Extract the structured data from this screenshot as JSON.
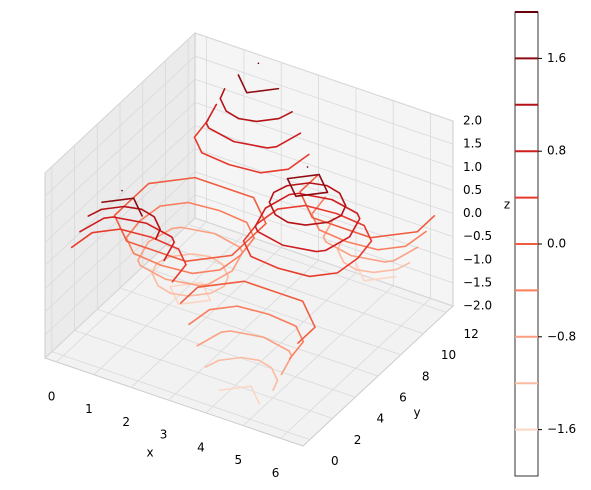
{
  "chart_data": {
    "type": "contour3d",
    "x_label": "x",
    "y_label": "y",
    "z_label": "z",
    "x": [
      0,
      0.785,
      1.571,
      2.356,
      3.142,
      3.927,
      4.712,
      5.498,
      6.283
    ],
    "y": [
      0,
      1.5,
      3,
      4.5,
      6,
      7.5,
      9,
      10.5,
      12
    ],
    "z": [
      [
        0,
        1.414,
        2,
        1.414,
        0,
        -1.414,
        -2,
        -1.414,
        0
      ],
      [
        0,
        1,
        1.414,
        1,
        0,
        -1,
        -1.414,
        -1,
        0
      ],
      [
        0,
        0,
        0,
        0,
        0,
        0,
        0,
        0,
        0
      ],
      [
        0,
        -1,
        -1.414,
        -1,
        0,
        1,
        1.414,
        1,
        0
      ],
      [
        0,
        -1.414,
        -2,
        -1.414,
        0,
        1.414,
        2,
        1.414,
        0
      ],
      [
        0,
        -1,
        -1.414,
        -1,
        0,
        1,
        1.414,
        1,
        0
      ],
      [
        0,
        0,
        0,
        0,
        0,
        0,
        0,
        0,
        0
      ],
      [
        0,
        1,
        1.414,
        1,
        0,
        -1,
        -1.414,
        -1,
        0
      ],
      [
        0,
        1.414,
        2,
        1.414,
        0,
        -1.414,
        -2,
        -1.414,
        0
      ]
    ],
    "levels": [
      -1.6,
      -1.2,
      -0.8,
      -0.4,
      0,
      0.4,
      0.8,
      1.2,
      1.6,
      2.0
    ],
    "level_colors": [
      "#fdd5c4",
      "#fcbba1",
      "#fc9f81",
      "#fb7d5d",
      "#f05c3f",
      "#e83a2c",
      "#d01d1f",
      "#b51217",
      "#8e0c12",
      "#67000d"
    ],
    "xlim": [
      -0.31,
      6.6
    ],
    "ylim": [
      -0.6,
      12.6
    ],
    "zlim": [
      -2,
      2
    ],
    "xticks": [
      0,
      1,
      2,
      3,
      4,
      5,
      6
    ],
    "yticks": [
      0,
      2,
      4,
      6,
      8,
      10,
      12
    ],
    "zticks": [
      {
        "value": 2,
        "label": "2.0"
      },
      {
        "value": 1.5,
        "label": "1.5"
      },
      {
        "value": 1,
        "label": "1.0"
      },
      {
        "value": 0.5,
        "label": "0.5"
      },
      {
        "value": 0,
        "label": "0.0"
      },
      {
        "value": -0.5,
        "label": "−0.5"
      },
      {
        "value": -1,
        "label": "−1.0"
      },
      {
        "value": -1.5,
        "label": "−1.5"
      },
      {
        "value": -2,
        "label": "−2.0"
      }
    ],
    "colorbar_lim": [
      -2,
      2
    ],
    "colorbar_ticks": [
      1.6,
      0.8,
      {
        "value": 0,
        "label": "0.0"
      },
      {
        "value": -0.8,
        "label": "−0.8"
      },
      {
        "value": -1.6,
        "label": "−1.6"
      }
    ],
    "grid": true
  }
}
